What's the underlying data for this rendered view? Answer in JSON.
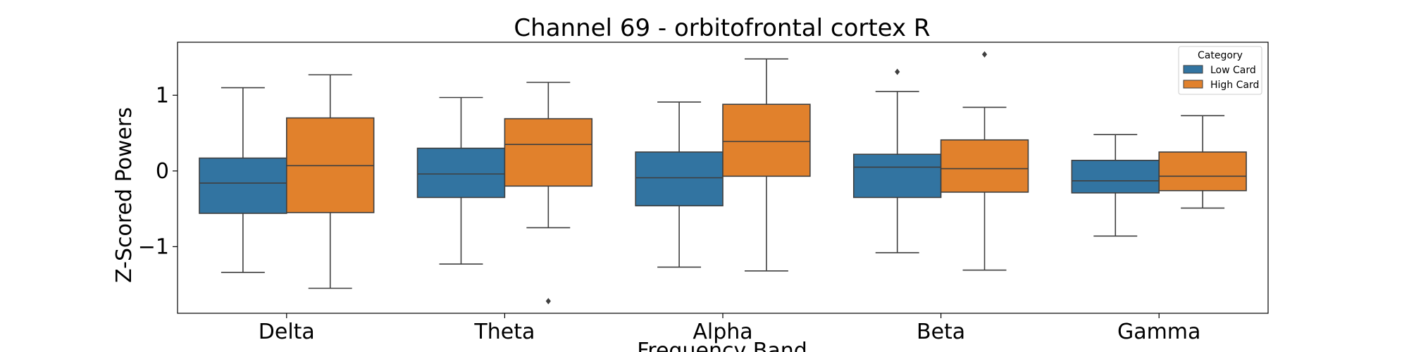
{
  "chart_data": {
    "type": "box",
    "title": "Channel 69 - orbitofrontal cortex R",
    "xlabel": "Frequency Band",
    "ylabel": "Z-Scored Powers",
    "categories": [
      "Delta",
      "Theta",
      "Alpha",
      "Beta",
      "Gamma"
    ],
    "ylim": [
      -1.88,
      1.7
    ],
    "yticks": [
      -1,
      0,
      1
    ],
    "ytick_labels": [
      "−1",
      "0",
      "1"
    ],
    "grid": false,
    "legend": {
      "title": "Category",
      "placement": "top-right"
    },
    "series": [
      {
        "name": "Low Card",
        "color": "#3274a1",
        "boxes": [
          {
            "whisker_low": -1.34,
            "q1": -0.56,
            "median": -0.16,
            "q3": 0.17,
            "whisker_high": 1.1,
            "outliers": []
          },
          {
            "whisker_low": -1.23,
            "q1": -0.35,
            "median": -0.04,
            "q3": 0.3,
            "whisker_high": 0.97,
            "outliers": []
          },
          {
            "whisker_low": -1.27,
            "q1": -0.46,
            "median": -0.09,
            "q3": 0.25,
            "whisker_high": 0.91,
            "outliers": []
          },
          {
            "whisker_low": -1.08,
            "q1": -0.35,
            "median": 0.05,
            "q3": 0.22,
            "whisker_high": 1.05,
            "outliers": [
              1.31
            ]
          },
          {
            "whisker_low": -0.86,
            "q1": -0.29,
            "median": -0.13,
            "q3": 0.14,
            "whisker_high": 0.48,
            "outliers": []
          }
        ]
      },
      {
        "name": "High Card",
        "color": "#e1812c",
        "boxes": [
          {
            "whisker_low": -1.55,
            "q1": -0.55,
            "median": 0.07,
            "q3": 0.7,
            "whisker_high": 1.27,
            "outliers": []
          },
          {
            "whisker_low": -0.75,
            "q1": -0.2,
            "median": 0.35,
            "q3": 0.69,
            "whisker_high": 1.17,
            "outliers": [
              -1.72
            ]
          },
          {
            "whisker_low": -1.32,
            "q1": -0.07,
            "median": 0.39,
            "q3": 0.88,
            "whisker_high": 1.48,
            "outliers": []
          },
          {
            "whisker_low": -1.31,
            "q1": -0.28,
            "median": 0.03,
            "q3": 0.41,
            "whisker_high": 0.84,
            "outliers": [
              1.54
            ]
          },
          {
            "whisker_low": -0.49,
            "q1": -0.26,
            "median": -0.07,
            "q3": 0.25,
            "whisker_high": 0.73,
            "outliers": []
          }
        ]
      }
    ]
  }
}
